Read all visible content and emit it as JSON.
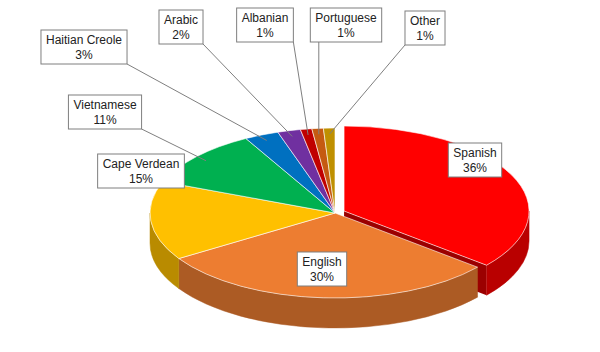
{
  "chart_data": {
    "type": "pie",
    "categories": [
      "Spanish",
      "English",
      "Cape Verdean",
      "Vietnamese",
      "Haitian Creole",
      "Arabic",
      "Albanian",
      "Portuguese",
      "Other"
    ],
    "values": [
      36,
      30,
      15,
      11,
      3,
      2,
      1,
      1,
      1
    ],
    "value_labels": [
      "36%",
      "30%",
      "15%",
      "11%",
      "3%",
      "2%",
      "1%",
      "1%",
      "1%"
    ],
    "colors": [
      "#ff0000",
      "#ed7d31",
      "#ffc000",
      "#00b050",
      "#0070c0",
      "#7030a0",
      "#c00000",
      "#c55a11",
      "#bf9000"
    ],
    "data_labels": true
  }
}
